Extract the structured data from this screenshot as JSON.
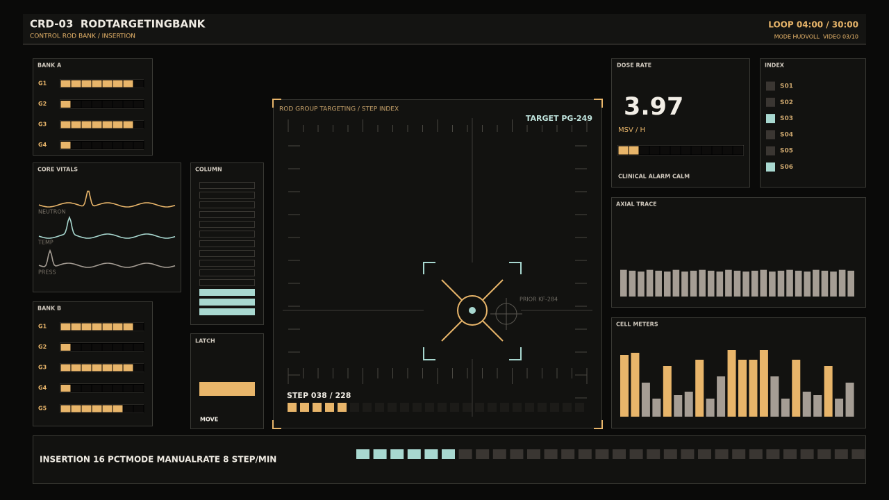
{
  "header": {
    "title": "CRD-03  RODTARGETINGBANK",
    "subtitle": "CONTROL ROD BANK / INSERTION",
    "loop": "LOOP 04:00 / 30:00",
    "mode": "MODE HUDVOLL  VIDEO 03/10"
  },
  "bank_a": {
    "title": "BANK A",
    "segments": 8,
    "rows": [
      {
        "label": "G1",
        "filled": 7
      },
      {
        "label": "G2",
        "filled": 1
      },
      {
        "label": "G3",
        "filled": 7
      },
      {
        "label": "G4",
        "filled": 1
      }
    ]
  },
  "core_vitals": {
    "title": "CORE VITALS",
    "traces": [
      "NEUTRON",
      "TEMP",
      "PRESS"
    ]
  },
  "bank_b": {
    "title": "BANK B",
    "segments": 8,
    "rows": [
      {
        "label": "G1",
        "filled": 7
      },
      {
        "label": "G2",
        "filled": 1
      },
      {
        "label": "G3",
        "filled": 7
      },
      {
        "label": "G4",
        "filled": 1
      },
      {
        "label": "G5",
        "filled": 6
      }
    ]
  },
  "column": {
    "title": "COLUMN",
    "segments": 14,
    "filled": 3
  },
  "latch": {
    "title": "LATCH",
    "action": "MOVE"
  },
  "targeting": {
    "title": "ROD GROUP TARGETING / STEP INDEX",
    "target": "TARGET PG-249",
    "prior": "PRIOR KF-284",
    "step": "STEP 038 / 228",
    "segments": 24,
    "filled": 5
  },
  "dose": {
    "title": "DOSE RATE",
    "value": "3.97",
    "unit": "MSV / H",
    "segments": 12,
    "filled": 2,
    "status": "CLINICAL ALARM CALM"
  },
  "index": {
    "title": "INDEX",
    "items": [
      {
        "label": "S01",
        "active": false
      },
      {
        "label": "S02",
        "active": false
      },
      {
        "label": "S03",
        "active": true
      },
      {
        "label": "S04",
        "active": false
      },
      {
        "label": "S05",
        "active": false
      },
      {
        "label": "S06",
        "active": true
      }
    ]
  },
  "axial_trace": {
    "title": "AXIAL TRACE",
    "range": [
      0,
      100
    ],
    "values": [
      32,
      31,
      30,
      32,
      31,
      30,
      32,
      30,
      31,
      32,
      31,
      30,
      32,
      31,
      30,
      31,
      32,
      30,
      31,
      32,
      31,
      30,
      32,
      31,
      30,
      32,
      31
    ]
  },
  "cell_meters": {
    "title": "CELL METERS",
    "range": [
      0,
      100
    ],
    "values": [
      89,
      92,
      49,
      26,
      73,
      31,
      36,
      82,
      26,
      58,
      96,
      82,
      82,
      96,
      58,
      26,
      82,
      36,
      31,
      73,
      26,
      49
    ],
    "colors": [
      "#e8b56a",
      "#e8b56a",
      "#a59d94",
      "#a59d94",
      "#e8b56a",
      "#a59d94",
      "#a59d94",
      "#e8b56a",
      "#a59d94",
      "#a59d94",
      "#e8b56a",
      "#e8b56a",
      "#e8b56a",
      "#e8b56a",
      "#a59d94",
      "#a59d94",
      "#e8b56a",
      "#a59d94",
      "#a59d94",
      "#e8b56a",
      "#a59d94",
      "#a59d94"
    ]
  },
  "footer": {
    "insertion": "INSERTION 16 PCT",
    "mode": "MODE MANUAL",
    "rate": "RATE 8 STEP/MIN",
    "segments": 30,
    "filled": 6
  }
}
